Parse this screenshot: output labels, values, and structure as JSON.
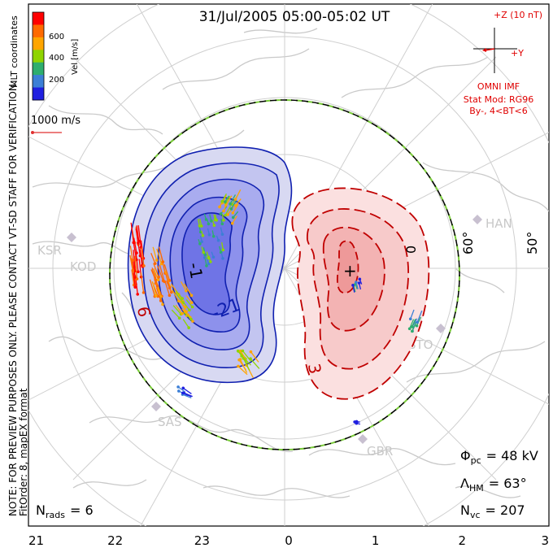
{
  "chart_data": {
    "type": "polar-convection-map",
    "title": "31/Jul/2005 05:00-05:02 UT",
    "coordinates_label": "MLT coordinates",
    "colorbar": {
      "label": "Vel [m/s]",
      "ticks": [
        "600",
        "400",
        "200"
      ],
      "colors": [
        "#ff0000",
        "#ff6a00",
        "#ffa500",
        "#8fd400",
        "#2eae6e",
        "#3c7fd6",
        "#1f1fe0"
      ]
    },
    "vector_scale_label": "1000 m/s",
    "imf": {
      "z_label": "+Z (10 nT)",
      "y_label": "+Y",
      "source": "OMNI IMF",
      "model": "Stat Mod: RG96",
      "condition": "By-, 4<BT<6"
    },
    "notice": "NOTE: FOR PREVIEW PURPOSES ONLY. PLEASE CONTACT VT-SD STAFF FOR VERIFICATION.",
    "fit_label": "FitOrder: 8, mapEX format",
    "stats": {
      "n_rads_label": "N",
      "n_rads_sub": "rads",
      "n_rads_value": "= 6",
      "phi_label": "Φ",
      "phi_sub": "pc",
      "phi_value": "= 48 kV",
      "lambda_label": "Λ",
      "lambda_sub": "HM",
      "lambda_value": "= 63°",
      "nvc_label": "N",
      "nvc_sub": "vc",
      "nvc_value": "= 207"
    },
    "mlt_ticks": [
      "21",
      "22",
      "23",
      "0",
      "1",
      "2",
      "3"
    ],
    "latitude_labels": [
      "60°",
      "50°",
      "0"
    ],
    "radar_labels": [
      "KSR",
      "KOD",
      "SAS",
      "HAN",
      "STO",
      "GBR"
    ],
    "contour_labels": {
      "negative_min": "-1",
      "negative_mid": "-21",
      "negative_edge": "6",
      "positive_edge": "3"
    },
    "pole_marker": "+",
    "heppner_maynard_lat_deg": 63,
    "cross_polar_cap_potential_kV": 48,
    "vector_count": 207,
    "radar_count": 6
  }
}
